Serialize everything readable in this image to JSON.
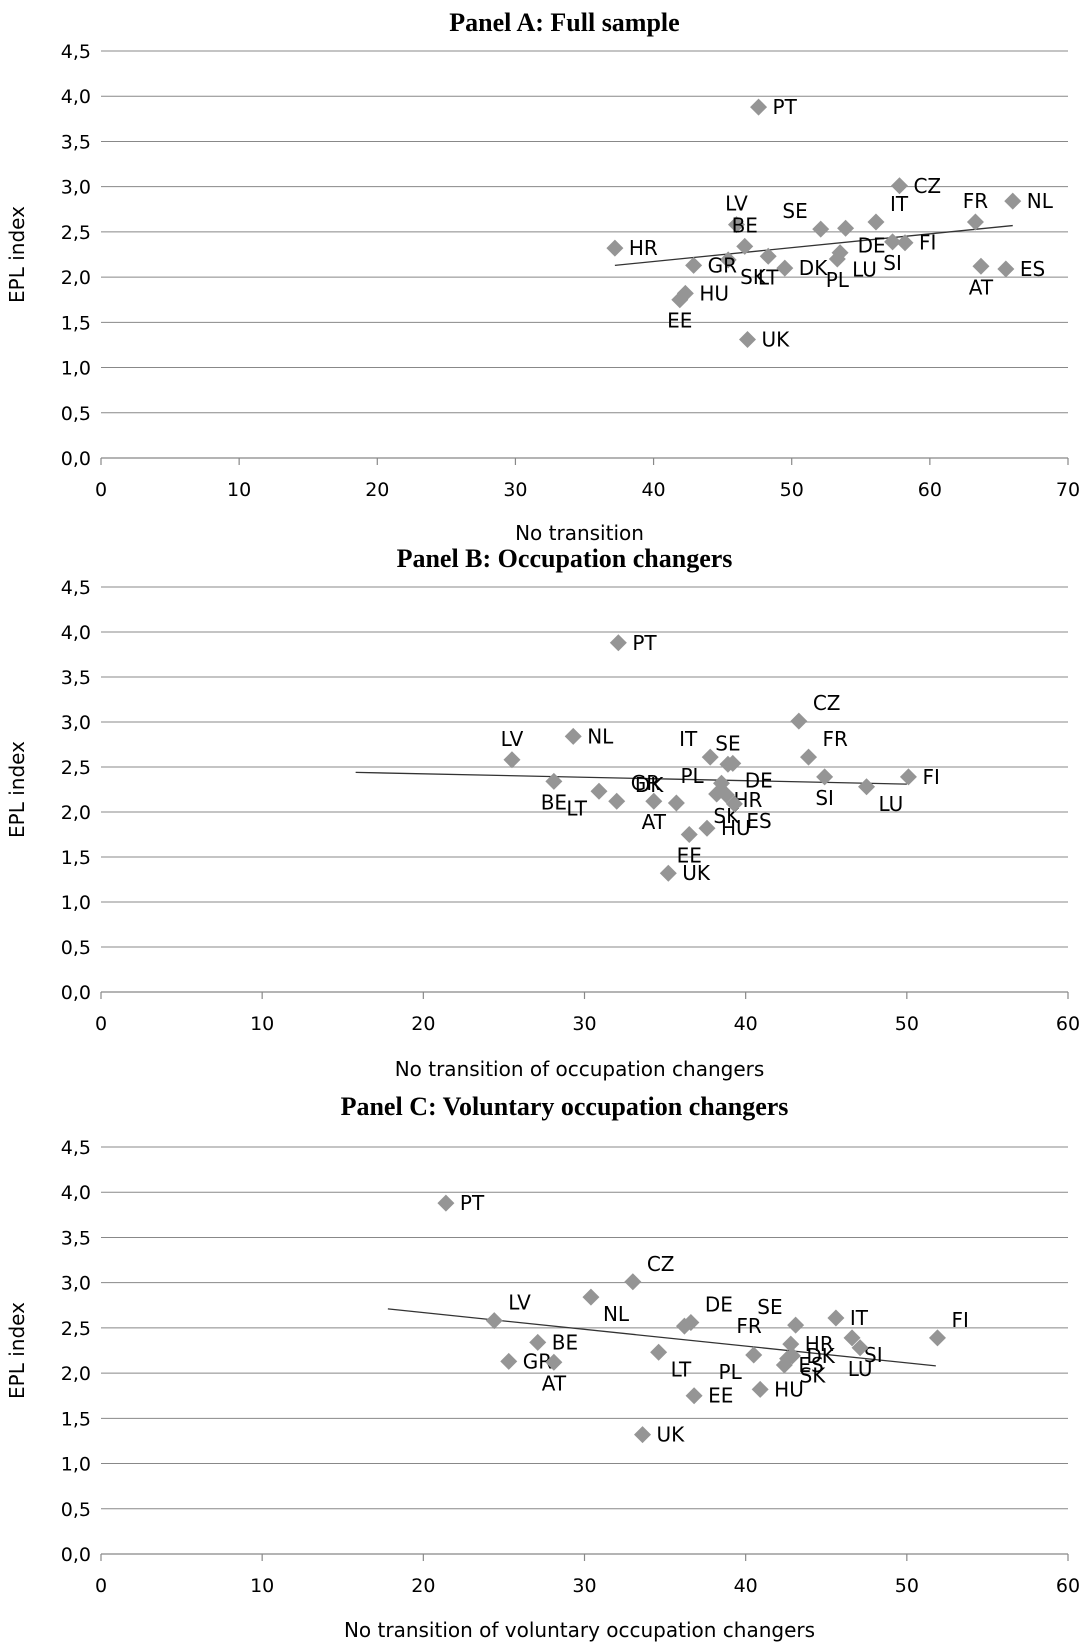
{
  "colors": {
    "marker": "#959595",
    "trend": "#333333",
    "grid": "#888888"
  },
  "chart_data": [
    {
      "type": "scatter",
      "title": "Panel A: Full sample",
      "xlabel": "No transition",
      "ylabel": "EPL index",
      "xlim": [
        0,
        70
      ],
      "ylim": [
        0,
        4.5
      ],
      "x_ticks": [
        "0",
        "10",
        "20",
        "30",
        "40",
        "50",
        "60",
        "70"
      ],
      "y_ticks": [
        "0,0",
        "0,5",
        "1,0",
        "1,5",
        "2,0",
        "2,5",
        "3,0",
        "3,5",
        "4,0",
        "4,5"
      ],
      "grid": "horizontal",
      "trendline": {
        "x": [
          37.2,
          66.0
        ],
        "y": [
          2.13,
          2.57
        ]
      },
      "points": [
        {
          "label": "PT",
          "x": 47.6,
          "y": 3.88,
          "pos": "right"
        },
        {
          "label": "CZ",
          "x": 57.8,
          "y": 3.01,
          "pos": "right"
        },
        {
          "label": "NL",
          "x": 66.0,
          "y": 2.84,
          "pos": "right"
        },
        {
          "label": "FR",
          "x": 63.3,
          "y": 2.61,
          "pos": "above"
        },
        {
          "label": "LV",
          "x": 46.0,
          "y": 2.58,
          "pos": "above"
        },
        {
          "label": "SE",
          "x": 52.1,
          "y": 2.53,
          "pos": "aboveleft"
        },
        {
          "label": "IT",
          "x": 56.1,
          "y": 2.61,
          "pos": "aboveright"
        },
        {
          "label": "DE",
          "x": 53.9,
          "y": 2.54,
          "pos": "belowright"
        },
        {
          "label": "BE",
          "x": 46.6,
          "y": 2.34,
          "pos": "above"
        },
        {
          "label": "HR",
          "x": 37.2,
          "y": 2.32,
          "pos": "right"
        },
        {
          "label": "SI",
          "x": 57.3,
          "y": 2.39,
          "pos": "below"
        },
        {
          "label": "FI",
          "x": 58.2,
          "y": 2.38,
          "pos": "right"
        },
        {
          "label": "LU",
          "x": 53.5,
          "y": 2.27,
          "pos": "belowright"
        },
        {
          "label": "LT",
          "x": 48.3,
          "y": 2.23,
          "pos": "below"
        },
        {
          "label": "SK",
          "x": 45.4,
          "y": 2.19,
          "pos": "belowright"
        },
        {
          "label": "GR",
          "x": 42.9,
          "y": 2.13,
          "pos": "right"
        },
        {
          "label": "DK",
          "x": 49.5,
          "y": 2.1,
          "pos": "right"
        },
        {
          "label": "PL",
          "x": 53.3,
          "y": 2.2,
          "pos": "below"
        },
        {
          "label": "AT",
          "x": 63.7,
          "y": 2.12,
          "pos": "below"
        },
        {
          "label": "ES",
          "x": 65.5,
          "y": 2.09,
          "pos": "right"
        },
        {
          "label": "HU",
          "x": 42.3,
          "y": 1.82,
          "pos": "right"
        },
        {
          "label": "EE",
          "x": 41.9,
          "y": 1.75,
          "pos": "below"
        },
        {
          "label": "UK",
          "x": 46.8,
          "y": 1.31,
          "pos": "right"
        }
      ]
    },
    {
      "type": "scatter",
      "title": "Panel B: Occupation changers",
      "xlabel": "No transition of occupation changers",
      "ylabel": "EPL index",
      "xlim": [
        0,
        60
      ],
      "ylim": [
        0,
        4.5
      ],
      "x_ticks": [
        "0",
        "10",
        "20",
        "30",
        "40",
        "50",
        "60"
      ],
      "y_ticks": [
        "0,0",
        "0,5",
        "1,0",
        "1,5",
        "2,0",
        "2,5",
        "3,0",
        "3,5",
        "4,0",
        "4,5"
      ],
      "grid": "horizontal",
      "trendline": {
        "x": [
          15.8,
          50.0
        ],
        "y": [
          2.44,
          2.31
        ]
      },
      "points": [
        {
          "label": "PT",
          "x": 32.1,
          "y": 3.88,
          "pos": "right"
        },
        {
          "label": "CZ",
          "x": 43.3,
          "y": 3.01,
          "pos": "aboveright"
        },
        {
          "label": "NL",
          "x": 29.3,
          "y": 2.84,
          "pos": "right"
        },
        {
          "label": "LV",
          "x": 25.5,
          "y": 2.58,
          "pos": "above"
        },
        {
          "label": "IT",
          "x": 37.8,
          "y": 2.61,
          "pos": "aboveleft"
        },
        {
          "label": "SE",
          "x": 38.9,
          "y": 2.53,
          "pos": "above"
        },
        {
          "label": "DE",
          "x": 39.2,
          "y": 2.54,
          "pos": "belowright"
        },
        {
          "label": "FR",
          "x": 43.9,
          "y": 2.61,
          "pos": "aboveright"
        },
        {
          "label": "FI",
          "x": 50.1,
          "y": 2.39,
          "pos": "right"
        },
        {
          "label": "SI",
          "x": 44.9,
          "y": 2.39,
          "pos": "below"
        },
        {
          "label": "LU",
          "x": 47.5,
          "y": 2.28,
          "pos": "belowright"
        },
        {
          "label": "BE",
          "x": 28.1,
          "y": 2.34,
          "pos": "below"
        },
        {
          "label": "HR",
          "x": 38.5,
          "y": 2.32,
          "pos": "belowright"
        },
        {
          "label": "PL",
          "x": 38.2,
          "y": 2.2,
          "pos": "aboveleft"
        },
        {
          "label": "LT",
          "x": 30.9,
          "y": 2.23,
          "pos": "belowleft"
        },
        {
          "label": "GR",
          "x": 32.0,
          "y": 2.12,
          "pos": "aboveright"
        },
        {
          "label": "DK",
          "x": 35.7,
          "y": 2.1,
          "pos": "aboveleft"
        },
        {
          "label": "AT",
          "x": 34.3,
          "y": 2.12,
          "pos": "below"
        },
        {
          "label": "SK",
          "x": 38.8,
          "y": 2.19,
          "pos": "below"
        },
        {
          "label": "ES",
          "x": 39.3,
          "y": 2.09,
          "pos": "belowright"
        },
        {
          "label": "HU",
          "x": 37.6,
          "y": 1.82,
          "pos": "right"
        },
        {
          "label": "EE",
          "x": 36.5,
          "y": 1.75,
          "pos": "below"
        },
        {
          "label": "UK",
          "x": 35.2,
          "y": 1.32,
          "pos": "right"
        }
      ]
    },
    {
      "type": "scatter",
      "title": "Panel C: Voluntary occupation changers",
      "xlabel": "No transition of voluntary occupation changers",
      "ylabel": "EPL index",
      "xlim": [
        0,
        60
      ],
      "ylim": [
        0,
        4.5
      ],
      "x_ticks": [
        "0",
        "10",
        "20",
        "30",
        "40",
        "50",
        "60"
      ],
      "y_ticks": [
        "0,0",
        "0,5",
        "1,0",
        "1,5",
        "2,0",
        "2,5",
        "3,0",
        "3,5",
        "4,0",
        "4,5"
      ],
      "grid": "horizontal",
      "trendline": {
        "x": [
          17.8,
          51.8
        ],
        "y": [
          2.71,
          2.08
        ]
      },
      "points": [
        {
          "label": "PT",
          "x": 21.4,
          "y": 3.88,
          "pos": "right"
        },
        {
          "label": "CZ",
          "x": 33.0,
          "y": 3.01,
          "pos": "aboveright"
        },
        {
          "label": "NL",
          "x": 30.4,
          "y": 2.84,
          "pos": "belowright"
        },
        {
          "label": "LV",
          "x": 24.4,
          "y": 2.58,
          "pos": "aboveright"
        },
        {
          "label": "DE",
          "x": 36.6,
          "y": 2.56,
          "pos": "aboveright"
        },
        {
          "label": "FR",
          "x": 36.2,
          "y": 2.52,
          "pos": "farright"
        },
        {
          "label": "SE",
          "x": 43.1,
          "y": 2.53,
          "pos": "aboveleft"
        },
        {
          "label": "IT",
          "x": 45.6,
          "y": 2.61,
          "pos": "right"
        },
        {
          "label": "FI",
          "x": 51.9,
          "y": 2.39,
          "pos": "aboveright"
        },
        {
          "label": "BE",
          "x": 27.1,
          "y": 2.34,
          "pos": "right"
        },
        {
          "label": "HR",
          "x": 42.8,
          "y": 2.32,
          "pos": "right"
        },
        {
          "label": "SI",
          "x": 46.6,
          "y": 2.39,
          "pos": "belowright"
        },
        {
          "label": "LU",
          "x": 47.1,
          "y": 2.28,
          "pos": "below"
        },
        {
          "label": "LT",
          "x": 34.6,
          "y": 2.23,
          "pos": "belowright"
        },
        {
          "label": "DK",
          "x": 42.9,
          "y": 2.19,
          "pos": "right"
        },
        {
          "label": "SK",
          "x": 42.6,
          "y": 2.16,
          "pos": "belowright"
        },
        {
          "label": "ES",
          "x": 42.4,
          "y": 2.09,
          "pos": "right"
        },
        {
          "label": "PL",
          "x": 40.5,
          "y": 2.2,
          "pos": "belowleft"
        },
        {
          "label": "GR",
          "x": 25.3,
          "y": 2.13,
          "pos": "right"
        },
        {
          "label": "AT",
          "x": 28.1,
          "y": 2.12,
          "pos": "below"
        },
        {
          "label": "HU",
          "x": 40.9,
          "y": 1.82,
          "pos": "right"
        },
        {
          "label": "EE",
          "x": 36.8,
          "y": 1.75,
          "pos": "right"
        },
        {
          "label": "UK",
          "x": 33.6,
          "y": 1.32,
          "pos": "right"
        }
      ]
    }
  ]
}
